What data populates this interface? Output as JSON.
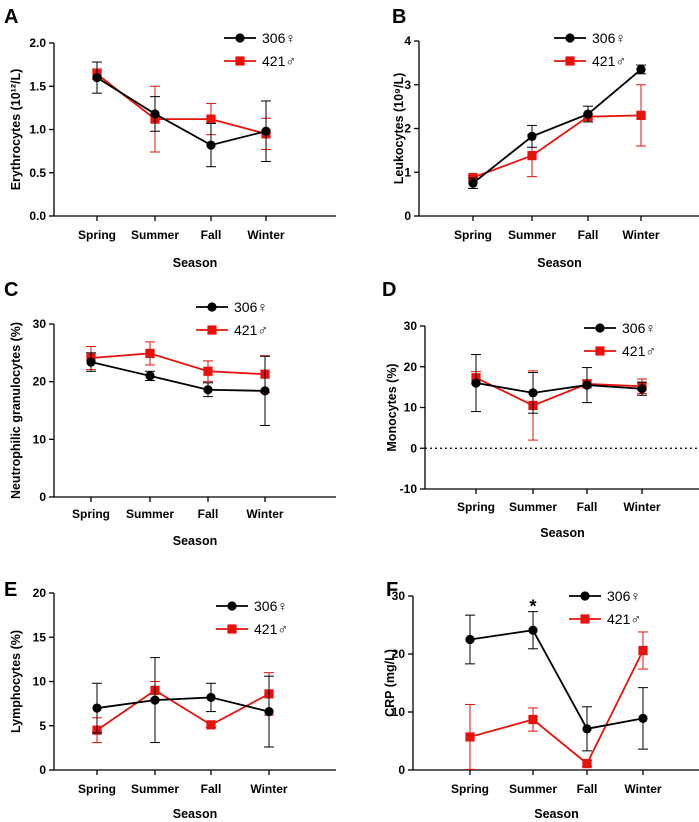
{
  "colors": {
    "female": "#000000",
    "male": "#e8120c"
  },
  "chart_data": [
    {
      "panel": "A",
      "type": "line",
      "categories": [
        "Spring",
        "Summer",
        "Fall",
        "Winter"
      ],
      "xlabel": "Season",
      "ylabel": "Erythrocytes (10¹²/L)",
      "ylim": [
        0,
        2.0
      ],
      "yticks": [
        "0.0",
        "0.5",
        "1.0",
        "1.5",
        "2.0"
      ],
      "zero_line": false,
      "annotations": [],
      "series": [
        {
          "name": "306♀",
          "marker": "circle",
          "color": "#000000",
          "values": [
            1.6,
            1.18,
            0.82,
            0.98
          ],
          "errors": [
            0.18,
            0.2,
            0.25,
            0.35
          ]
        },
        {
          "name": "421♂",
          "marker": "square",
          "color": "#e8120c",
          "values": [
            1.64,
            1.12,
            1.12,
            0.95
          ],
          "errors": [
            0.06,
            0.38,
            0.18,
            0.18
          ]
        }
      ]
    },
    {
      "panel": "B",
      "type": "line",
      "categories": [
        "Spring",
        "Summer",
        "Fall",
        "Winter"
      ],
      "xlabel": "Season",
      "ylabel": "Leukocytes (10⁹/L)",
      "ylim": [
        0,
        4
      ],
      "yticks": [
        "0",
        "1",
        "2",
        "3",
        "4"
      ],
      "zero_line": false,
      "annotations": [],
      "series": [
        {
          "name": "306♀",
          "marker": "circle",
          "color": "#000000",
          "values": [
            0.75,
            1.82,
            2.33,
            3.35
          ],
          "errors": [
            0.12,
            0.25,
            0.18,
            0.1
          ]
        },
        {
          "name": "421♂",
          "marker": "square",
          "color": "#e8120c",
          "values": [
            0.88,
            1.38,
            2.27,
            2.3
          ],
          "errors": [
            0.05,
            0.48,
            0.05,
            0.7
          ]
        }
      ]
    },
    {
      "panel": "C",
      "type": "line",
      "categories": [
        "Spring",
        "Summer",
        "Fall",
        "Winter"
      ],
      "xlabel": "Season",
      "ylabel": "Neutrophilic granulocytes (%)",
      "ylim": [
        0,
        30
      ],
      "yticks": [
        "0",
        "10",
        "20",
        "30"
      ],
      "zero_line": false,
      "annotations": [],
      "series": [
        {
          "name": "306♀",
          "marker": "circle",
          "color": "#000000",
          "values": [
            23.4,
            21.0,
            18.6,
            18.4
          ],
          "errors": [
            1.6,
            0.8,
            1.2,
            6.0
          ]
        },
        {
          "name": "421♂",
          "marker": "square",
          "color": "#e8120c",
          "values": [
            24.1,
            24.9,
            21.8,
            21.3
          ],
          "errors": [
            2.0,
            2.0,
            1.8,
            3.2
          ]
        }
      ]
    },
    {
      "panel": "D",
      "type": "line",
      "categories": [
        "Spring",
        "Summer",
        "Fall",
        "Winter"
      ],
      "xlabel": "Season",
      "ylabel": "Monocytes (%)",
      "ylim": [
        -10,
        30
      ],
      "yticks": [
        "-10",
        "0",
        "10",
        "20",
        "30"
      ],
      "zero_line": true,
      "annotations": [],
      "series": [
        {
          "name": "306♀",
          "marker": "circle",
          "color": "#000000",
          "values": [
            16.0,
            13.6,
            15.5,
            14.6
          ],
          "errors": [
            7.0,
            5.0,
            4.3,
            1.6
          ]
        },
        {
          "name": "421♂",
          "marker": "square",
          "color": "#e8120c",
          "values": [
            17.3,
            10.5,
            15.8,
            15.2
          ],
          "errors": [
            1.5,
            8.5,
            1.0,
            1.8
          ]
        }
      ]
    },
    {
      "panel": "E",
      "type": "line",
      "categories": [
        "Spring",
        "Summer",
        "Fall",
        "Winter"
      ],
      "xlabel": "Season",
      "ylabel": "Lymphocytes (%)",
      "ylim": [
        0,
        20
      ],
      "yticks": [
        "0",
        "5",
        "10",
        "15",
        "20"
      ],
      "zero_line": false,
      "annotations": [],
      "series": [
        {
          "name": "306♀",
          "marker": "circle",
          "color": "#000000",
          "values": [
            7.0,
            7.9,
            8.2,
            6.6
          ],
          "errors": [
            2.8,
            4.8,
            1.6,
            4.0
          ]
        },
        {
          "name": "421♂",
          "marker": "square",
          "color": "#e8120c",
          "values": [
            4.5,
            9.0,
            5.1,
            8.6
          ],
          "errors": [
            1.4,
            1.0,
            0.3,
            2.4
          ]
        }
      ]
    },
    {
      "panel": "F",
      "type": "line",
      "categories": [
        "Spring",
        "Summer",
        "Fall",
        "Winter"
      ],
      "xlabel": "Season",
      "ylabel": "CRP (mg/L)",
      "ylim": [
        0,
        30
      ],
      "yticks": [
        "0",
        "10",
        "20",
        "30"
      ],
      "zero_line": false,
      "annotations": [
        {
          "text": "*",
          "category": "Summer",
          "y": 28.5
        }
      ],
      "series": [
        {
          "name": "306♀",
          "marker": "circle",
          "color": "#000000",
          "values": [
            22.5,
            24.1,
            7.1,
            8.9
          ],
          "errors": [
            4.2,
            3.2,
            3.8,
            5.3
          ]
        },
        {
          "name": "421♂",
          "marker": "square",
          "color": "#e8120c",
          "values": [
            5.7,
            8.7,
            1.1,
            20.6
          ],
          "errors": [
            5.6,
            2.0,
            0.5,
            3.2
          ]
        }
      ]
    }
  ]
}
